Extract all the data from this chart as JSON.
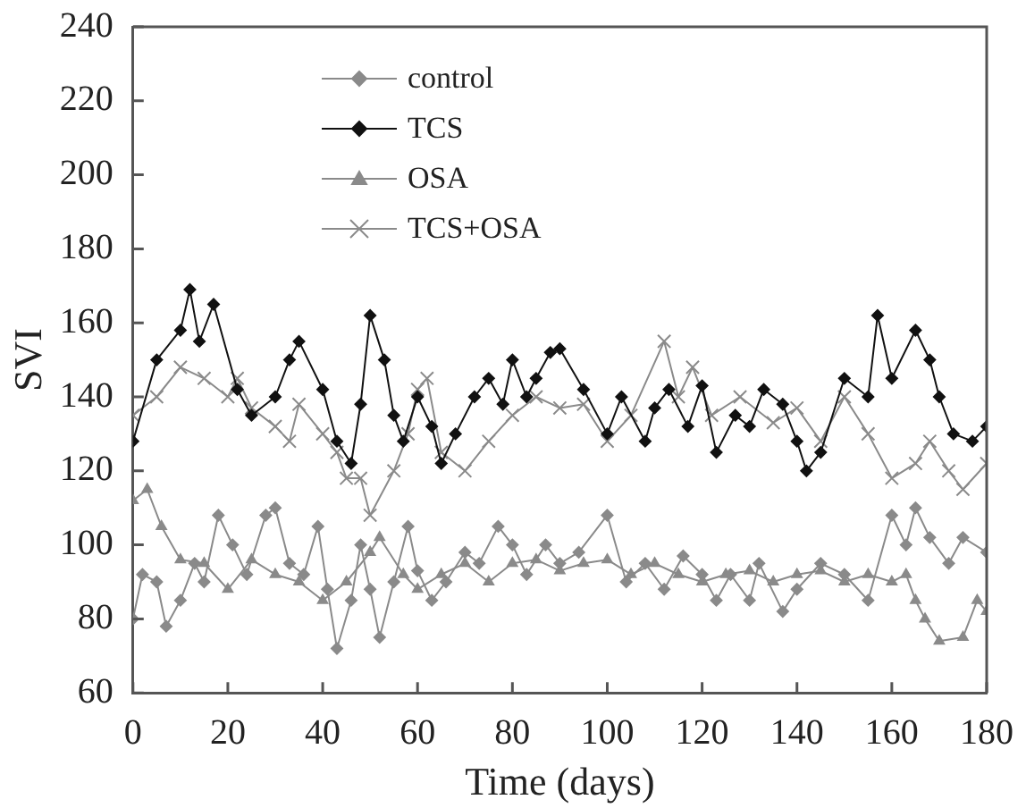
{
  "chart_data": {
    "type": "line",
    "xlabel": "Time (days)",
    "ylabel": "SVI",
    "xlim": [
      0,
      180
    ],
    "xticks": [
      0,
      20,
      40,
      60,
      80,
      100,
      120,
      140,
      160,
      180
    ],
    "ylim": [
      60,
      240
    ],
    "yticks": [
      60,
      80,
      100,
      120,
      140,
      160,
      180,
      200,
      220,
      240
    ],
    "grid": false,
    "legend": "top left",
    "line_style": "solid",
    "series": [
      {
        "name": "control",
        "color": "#8a8a8a",
        "marker": "diamond",
        "x": [
          0,
          2,
          5,
          7,
          10,
          13,
          15,
          18,
          21,
          24,
          28,
          30,
          33,
          36,
          39,
          41,
          43,
          46,
          48,
          50,
          52,
          55,
          58,
          60,
          63,
          66,
          70,
          73,
          77,
          80,
          83,
          87,
          90,
          94,
          100,
          104,
          108,
          112,
          116,
          120,
          123,
          126,
          130,
          132,
          137,
          140,
          145,
          150,
          155,
          160,
          163,
          165,
          168,
          172,
          175,
          180
        ],
        "values": [
          80,
          92,
          90,
          78,
          85,
          95,
          90,
          108,
          100,
          92,
          108,
          110,
          95,
          92,
          105,
          88,
          72,
          85,
          100,
          88,
          75,
          90,
          105,
          93,
          85,
          90,
          98,
          95,
          105,
          100,
          92,
          100,
          95,
          98,
          108,
          90,
          95,
          88,
          97,
          92,
          85,
          92,
          85,
          95,
          82,
          88,
          95,
          92,
          85,
          108,
          100,
          110,
          102,
          95,
          102,
          98
        ]
      },
      {
        "name": "TCS",
        "color": "#111111",
        "marker": "diamond",
        "x": [
          0,
          5,
          10,
          12,
          14,
          17,
          22,
          25,
          30,
          33,
          35,
          40,
          43,
          46,
          48,
          50,
          53,
          55,
          57,
          60,
          63,
          65,
          68,
          72,
          75,
          78,
          80,
          83,
          85,
          88,
          90,
          95,
          100,
          103,
          108,
          110,
          113,
          117,
          120,
          123,
          127,
          130,
          133,
          137,
          140,
          142,
          145,
          150,
          155,
          157,
          160,
          165,
          168,
          170,
          173,
          177,
          180
        ],
        "values": [
          128,
          150,
          158,
          169,
          155,
          165,
          142,
          135,
          140,
          150,
          155,
          142,
          128,
          122,
          138,
          162,
          150,
          135,
          128,
          140,
          132,
          122,
          130,
          140,
          145,
          138,
          150,
          140,
          145,
          152,
          153,
          142,
          130,
          140,
          128,
          137,
          142,
          132,
          143,
          125,
          135,
          132,
          142,
          138,
          128,
          120,
          125,
          145,
          140,
          162,
          145,
          158,
          150,
          140,
          130,
          128,
          132
        ]
      },
      {
        "name": "OSA",
        "color": "#8a8a8a",
        "marker": "triangle",
        "x": [
          0,
          3,
          6,
          10,
          15,
          20,
          25,
          30,
          35,
          40,
          45,
          50,
          52,
          57,
          60,
          65,
          70,
          75,
          80,
          85,
          90,
          95,
          100,
          105,
          110,
          115,
          120,
          125,
          130,
          135,
          140,
          145,
          150,
          155,
          160,
          163,
          165,
          167,
          170,
          175,
          178,
          180
        ],
        "values": [
          112,
          115,
          105,
          96,
          95,
          88,
          96,
          92,
          90,
          85,
          90,
          98,
          102,
          92,
          88,
          92,
          95,
          90,
          95,
          96,
          93,
          95,
          96,
          92,
          95,
          92,
          90,
          92,
          93,
          90,
          92,
          93,
          90,
          92,
          90,
          92,
          85,
          80,
          74,
          75,
          85,
          82
        ]
      },
      {
        "name": "TCS+OSA",
        "color": "#8a8a8a",
        "marker": "cross",
        "x": [
          0,
          5,
          10,
          15,
          20,
          22,
          25,
          30,
          33,
          35,
          40,
          43,
          45,
          48,
          50,
          55,
          58,
          60,
          62,
          65,
          70,
          75,
          80,
          85,
          90,
          95,
          100,
          105,
          112,
          115,
          118,
          122,
          128,
          135,
          140,
          145,
          150,
          155,
          160,
          165,
          168,
          172,
          175,
          180
        ],
        "values": [
          135,
          140,
          148,
          145,
          140,
          145,
          137,
          132,
          128,
          138,
          130,
          125,
          118,
          118,
          108,
          120,
          130,
          142,
          145,
          125,
          120,
          128,
          135,
          140,
          137,
          138,
          128,
          135,
          155,
          140,
          148,
          135,
          140,
          133,
          137,
          128,
          140,
          130,
          118,
          122,
          128,
          120,
          115,
          122
        ]
      }
    ]
  }
}
